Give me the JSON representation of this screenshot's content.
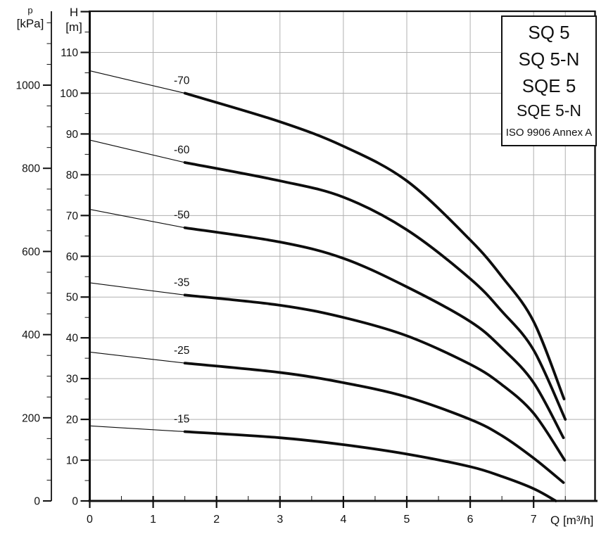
{
  "legend": {
    "lines": [
      "SQ 5",
      "SQ 5-N",
      "SQE 5",
      "SQE 5-N"
    ],
    "note": "ISO 9906 Annex A"
  },
  "axis_titles": {
    "p_line1": "p",
    "p_line2": "[kPa]",
    "h_line1": "H",
    "h_line2": "[m]",
    "q": "Q [m³/h]"
  },
  "colors": {
    "curve": "#0d0d0d",
    "axis": "#111111",
    "grid": "#b0b0b0",
    "text": "#111111",
    "background": "#ffffff"
  },
  "chart_data": {
    "type": "line",
    "title": "",
    "xlabel": "Q [m³/h]",
    "ylabel_outer": "p [kPa]",
    "ylabel_inner": "H [m]",
    "x_range": [
      0,
      7.97
    ],
    "y_range_m": [
      0,
      120
    ],
    "grid": true,
    "legend_position": "top-right",
    "x_major_ticks": [
      0,
      1,
      2,
      3,
      4,
      5,
      6,
      7
    ],
    "x_minor_step": 0.5,
    "x_grid_lines": [
      1,
      2,
      3,
      4,
      5,
      6,
      7,
      7.5
    ],
    "h_major_ticks": [
      0,
      10,
      20,
      30,
      40,
      50,
      60,
      70,
      80,
      90,
      100,
      110
    ],
    "h_minor_step": 5,
    "h_axis_top_m": 120,
    "p_major_ticks": [
      0,
      200,
      400,
      600,
      800,
      1000
    ],
    "p_minor_step_kpa": 50,
    "p_axis_top_kpa": 1150,
    "kpa_per_m": 9.80665,
    "thin_until_q": 1.5,
    "series": [
      {
        "name": "-70",
        "points": [
          [
            0,
            105.5
          ],
          [
            1.5,
            100
          ],
          [
            3,
            93
          ],
          [
            4,
            87
          ],
          [
            5,
            78.5
          ],
          [
            6,
            64
          ],
          [
            6.5,
            55
          ],
          [
            7,
            44
          ],
          [
            7.48,
            25
          ]
        ]
      },
      {
        "name": "-60",
        "points": [
          [
            0,
            88.5
          ],
          [
            1.5,
            83
          ],
          [
            3,
            78.5
          ],
          [
            4,
            74.5
          ],
          [
            5,
            66.5
          ],
          [
            6,
            54.5
          ],
          [
            6.5,
            46.5
          ],
          [
            7,
            37
          ],
          [
            7.5,
            20
          ]
        ]
      },
      {
        "name": "-50",
        "points": [
          [
            0,
            71.5
          ],
          [
            1.5,
            67
          ],
          [
            3,
            63.5
          ],
          [
            4,
            59.5
          ],
          [
            5,
            52.5
          ],
          [
            6,
            44
          ],
          [
            6.5,
            37.5
          ],
          [
            7,
            29
          ],
          [
            7.47,
            15.5
          ]
        ]
      },
      {
        "name": "-35",
        "points": [
          [
            0,
            53.5
          ],
          [
            1.5,
            50.5
          ],
          [
            3,
            48
          ],
          [
            4,
            45
          ],
          [
            5,
            40.5
          ],
          [
            6,
            33.5
          ],
          [
            6.5,
            28.5
          ],
          [
            7,
            21.5
          ],
          [
            7.49,
            10
          ]
        ]
      },
      {
        "name": "-25",
        "points": [
          [
            0,
            36.5
          ],
          [
            1.5,
            33.8
          ],
          [
            3,
            31.5
          ],
          [
            4,
            29
          ],
          [
            5,
            25.5
          ],
          [
            6,
            20
          ],
          [
            6.5,
            16
          ],
          [
            7,
            10.5
          ],
          [
            7.47,
            4.5
          ]
        ]
      },
      {
        "name": "-15",
        "points": [
          [
            0,
            18.4
          ],
          [
            1.5,
            17
          ],
          [
            3,
            15.5
          ],
          [
            4,
            13.8
          ],
          [
            5,
            11.5
          ],
          [
            6,
            8.4
          ],
          [
            6.5,
            6
          ],
          [
            7,
            3
          ],
          [
            7.35,
            0
          ]
        ]
      }
    ]
  }
}
